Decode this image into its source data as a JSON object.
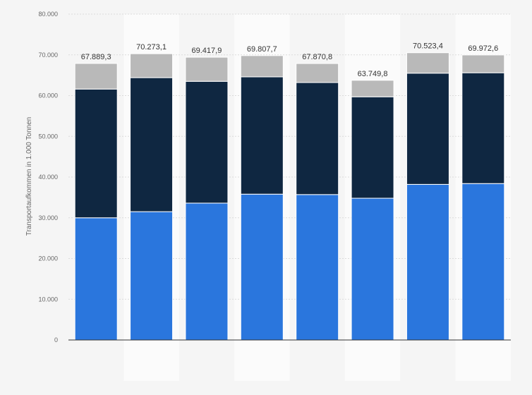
{
  "chart_data": {
    "type": "bar",
    "stacked": true,
    "categories": [
      "",
      "",
      "",
      "",
      "",
      "",
      "",
      ""
    ],
    "ylabel": "Transportaufkommen in 1.000 Tonnen",
    "ylim": [
      0,
      80000
    ],
    "yticks": [
      0,
      10000,
      20000,
      30000,
      40000,
      50000,
      60000,
      70000,
      80000
    ],
    "ytick_labels": [
      "0",
      "10.000",
      "20.000",
      "30.000",
      "40.000",
      "50.000",
      "60.000",
      "70.000",
      "80.000"
    ],
    "grid": true,
    "series": [
      {
        "color": "#2a76dd",
        "values": [
          30000,
          31500,
          33600,
          35800,
          35700,
          34800,
          38200,
          38400
        ]
      },
      {
        "color": "#0f2741",
        "values": [
          31600,
          32900,
          29900,
          28800,
          27500,
          24900,
          27300,
          27200
        ]
      },
      {
        "color": "#b9b9b9",
        "values": [
          6289.3,
          5873.1,
          5917.9,
          5207.7,
          4670.8,
          4049.8,
          5023.4,
          4372.6
        ]
      }
    ],
    "totals": [
      67889.3,
      70273.1,
      69417.9,
      69807.7,
      67870.8,
      63749.8,
      70523.4,
      69972.6
    ],
    "total_labels": [
      "67.889,3",
      "70.273,1",
      "69.417,9",
      "69.807,7",
      "67.870,8",
      "63.749,8",
      "70.523,4",
      "69.972,6"
    ]
  }
}
